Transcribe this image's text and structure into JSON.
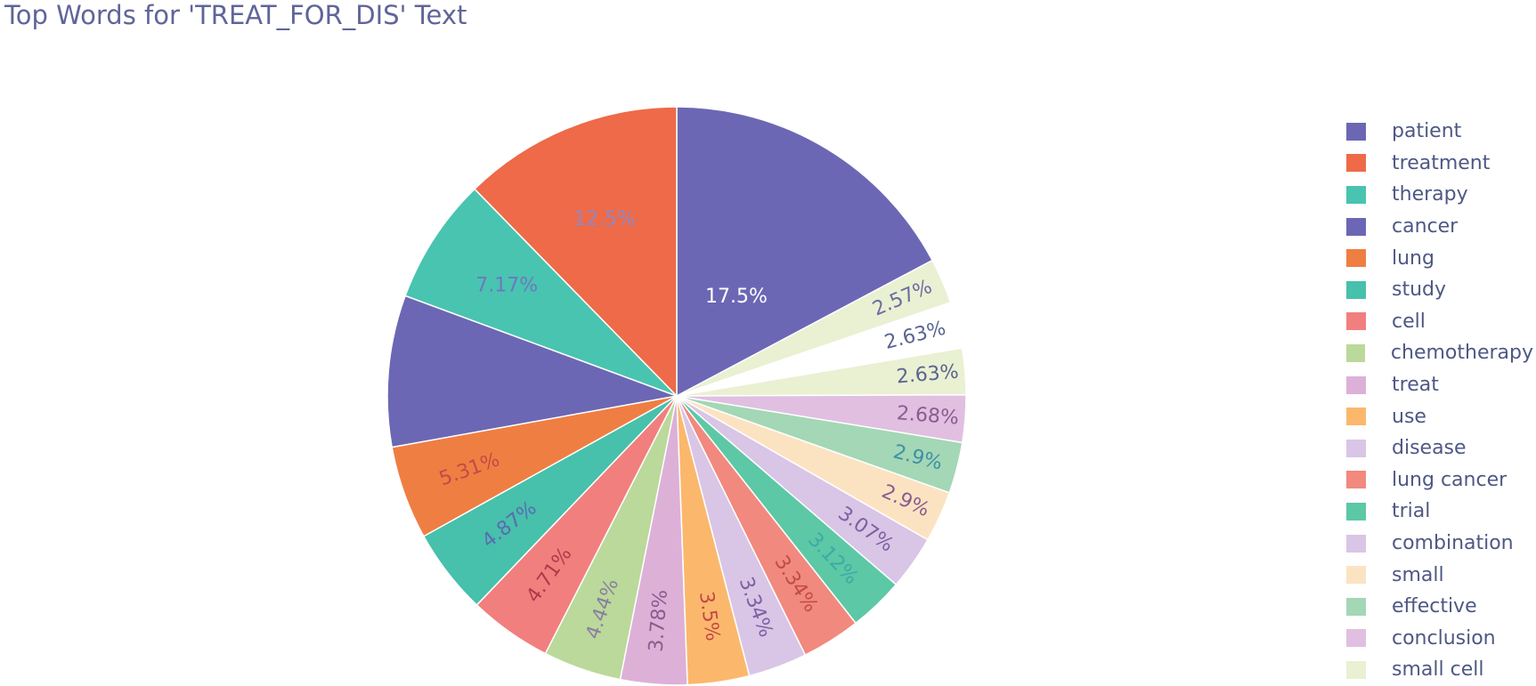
{
  "chart_data": {
    "type": "pie",
    "title": "Top Words for 'TREAT_FOR_DIS' Text",
    "legend_position": "right",
    "slices": [
      {
        "label": "patient",
        "percent_label": "17.5%",
        "value": 17.5,
        "color": "#6c67b4"
      },
      {
        "label": "small cell",
        "percent_label": "2.57%",
        "value": 2.57,
        "color": "#eaf0d2"
      },
      {
        "label": "",
        "percent_label": "2.63%",
        "value": 2.63,
        "color": "#ffffff"
      },
      {
        "label": "",
        "percent_label": "2.63%",
        "value": 2.63,
        "color": "#eaf0d2"
      },
      {
        "label": "conclusion",
        "percent_label": "2.68%",
        "value": 2.68,
        "color": "#e1bfe1"
      },
      {
        "label": "effective",
        "percent_label": "2.9%",
        "value": 2.9,
        "color": "#a3d7b5"
      },
      {
        "label": "small",
        "percent_label": "2.9%",
        "value": 2.9,
        "color": "#fbe3c2"
      },
      {
        "label": "combination",
        "percent_label": "3.07%",
        "value": 3.07,
        "color": "#d9c5e6"
      },
      {
        "label": "trial",
        "percent_label": "3.12%",
        "value": 3.12,
        "color": "#5cc8a5"
      },
      {
        "label": "lung cancer",
        "percent_label": "3.34%",
        "value": 3.34,
        "color": "#f1897e"
      },
      {
        "label": "disease",
        "percent_label": "3.34%",
        "value": 3.34,
        "color": "#d9c5e6"
      },
      {
        "label": "use",
        "percent_label": "3.5%",
        "value": 3.5,
        "color": "#fbb86c"
      },
      {
        "label": "treat",
        "percent_label": "3.78%",
        "value": 3.78,
        "color": "#ddb0d8"
      },
      {
        "label": "chemotherapy",
        "percent_label": "4.44%",
        "value": 4.44,
        "color": "#bad99a"
      },
      {
        "label": "cell",
        "percent_label": "4.71%",
        "value": 4.71,
        "color": "#f17f7e"
      },
      {
        "label": "study",
        "percent_label": "4.87%",
        "value": 4.87,
        "color": "#47c0ac"
      },
      {
        "label": "lung",
        "percent_label": "5.31%",
        "value": 5.31,
        "color": "#ef7e43"
      },
      {
        "label": "cancer",
        "percent_label": "",
        "value": 8.6,
        "color": "#6c67b4"
      },
      {
        "label": "therapy",
        "percent_label": "7.17%",
        "value": 7.17,
        "color": "#49c4b0"
      },
      {
        "label": "treatment",
        "percent_label": "12.5%",
        "value": 12.5,
        "color": "#ee6a48"
      }
    ],
    "label_colors": [
      "#ffffff",
      "#6c6ca2",
      "#5a6590",
      "#5a6590",
      "#8a5c8e",
      "#3f8fa6",
      "#8a5c8e",
      "#7f5fa0",
      "#3fa8a8",
      "#c24a48",
      "#7f5fa0",
      "#c24a48",
      "#8a5c8e",
      "#8a7fa0",
      "#b03a48",
      "#5a6cb0",
      "#c24a48",
      "#8f88c4",
      "#6c78c0",
      "#8f88c4"
    ],
    "legend": [
      {
        "label": "patient",
        "color": "#6c67b4"
      },
      {
        "label": "treatment",
        "color": "#ee6a48"
      },
      {
        "label": "therapy",
        "color": "#49c4b0"
      },
      {
        "label": "cancer",
        "color": "#6c67b4"
      },
      {
        "label": "lung",
        "color": "#ef7e43"
      },
      {
        "label": "study",
        "color": "#47c0ac"
      },
      {
        "label": "cell",
        "color": "#f17f7e"
      },
      {
        "label": "chemotherapy",
        "color": "#bad99a"
      },
      {
        "label": "treat",
        "color": "#ddb0d8"
      },
      {
        "label": "use",
        "color": "#fbb86c"
      },
      {
        "label": "disease",
        "color": "#d9c5e6"
      },
      {
        "label": "lung cancer",
        "color": "#f1897e"
      },
      {
        "label": "trial",
        "color": "#5cc8a5"
      },
      {
        "label": "combination",
        "color": "#d9c5e6"
      },
      {
        "label": "small",
        "color": "#fbe3c2"
      },
      {
        "label": "effective",
        "color": "#a3d7b5"
      },
      {
        "label": "conclusion",
        "color": "#e1bfe1"
      },
      {
        "label": "small cell",
        "color": "#eaf0d2"
      }
    ]
  }
}
